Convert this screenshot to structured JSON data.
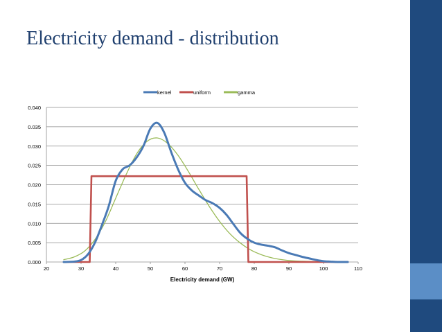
{
  "slide": {
    "title": "Electricity demand - distribution"
  },
  "colors": {
    "kernel": "#4a7ab5",
    "uniform": "#c0504d",
    "gamma": "#9bbb59",
    "sidebar": "#1f4a7e",
    "sidebar_accent": "#5b8ec6"
  },
  "chart_data": {
    "type": "line",
    "title": "",
    "xlabel": "Electricity demand (GW)",
    "ylabel": "",
    "xlim": [
      20,
      110
    ],
    "ylim": [
      0,
      0.04
    ],
    "x_ticks": [
      "20",
      "30",
      "40",
      "50",
      "60",
      "70",
      "80",
      "90",
      "100",
      "110"
    ],
    "y_ticks": [
      "0.000",
      "0.005",
      "0.010",
      "0.015",
      "0.020",
      "0.025",
      "0.030",
      "0.035",
      "0.040"
    ],
    "legend_position": "top-center",
    "series": [
      {
        "name": "kernel",
        "x": [
          25,
          28,
          30,
          32,
          34,
          36,
          38,
          40,
          42,
          44,
          46,
          48,
          50,
          52,
          54,
          56,
          58,
          60,
          62,
          64,
          66,
          68,
          70,
          72,
          74,
          76,
          78,
          80,
          82,
          84,
          86,
          88,
          90,
          92,
          94,
          96,
          98,
          100,
          102,
          104,
          107
        ],
        "y": [
          0,
          0.0001,
          0.0005,
          0.002,
          0.005,
          0.0095,
          0.0145,
          0.021,
          0.024,
          0.025,
          0.027,
          0.03,
          0.0345,
          0.036,
          0.0335,
          0.0285,
          0.024,
          0.0205,
          0.0185,
          0.0172,
          0.016,
          0.0152,
          0.014,
          0.0122,
          0.0098,
          0.0075,
          0.006,
          0.005,
          0.0045,
          0.0042,
          0.0038,
          0.003,
          0.0023,
          0.0018,
          0.0013,
          0.0009,
          0.0005,
          0.0002,
          0.0001,
          0,
          0
        ]
      },
      {
        "name": "uniform",
        "x": [
          25,
          32.5,
          33,
          77.8,
          78.3,
          107
        ],
        "y": [
          0,
          0,
          0.0222,
          0.0222,
          0,
          0
        ]
      },
      {
        "name": "gamma",
        "x": [
          25,
          28,
          31,
          34,
          37,
          40,
          43,
          46,
          49,
          52,
          55,
          58,
          61,
          64,
          67,
          70,
          73,
          76,
          79,
          82,
          85,
          88,
          91,
          94,
          97,
          100,
          103,
          107
        ],
        "y": [
          0.0006,
          0.0013,
          0.0028,
          0.0058,
          0.0104,
          0.0165,
          0.0226,
          0.0279,
          0.0312,
          0.0321,
          0.0307,
          0.0276,
          0.0234,
          0.0188,
          0.0144,
          0.0105,
          0.0073,
          0.0049,
          0.0031,
          0.0019,
          0.0011,
          0.0006,
          0.0003,
          0.0002,
          0.0001,
          0,
          0,
          0
        ]
      }
    ]
  }
}
